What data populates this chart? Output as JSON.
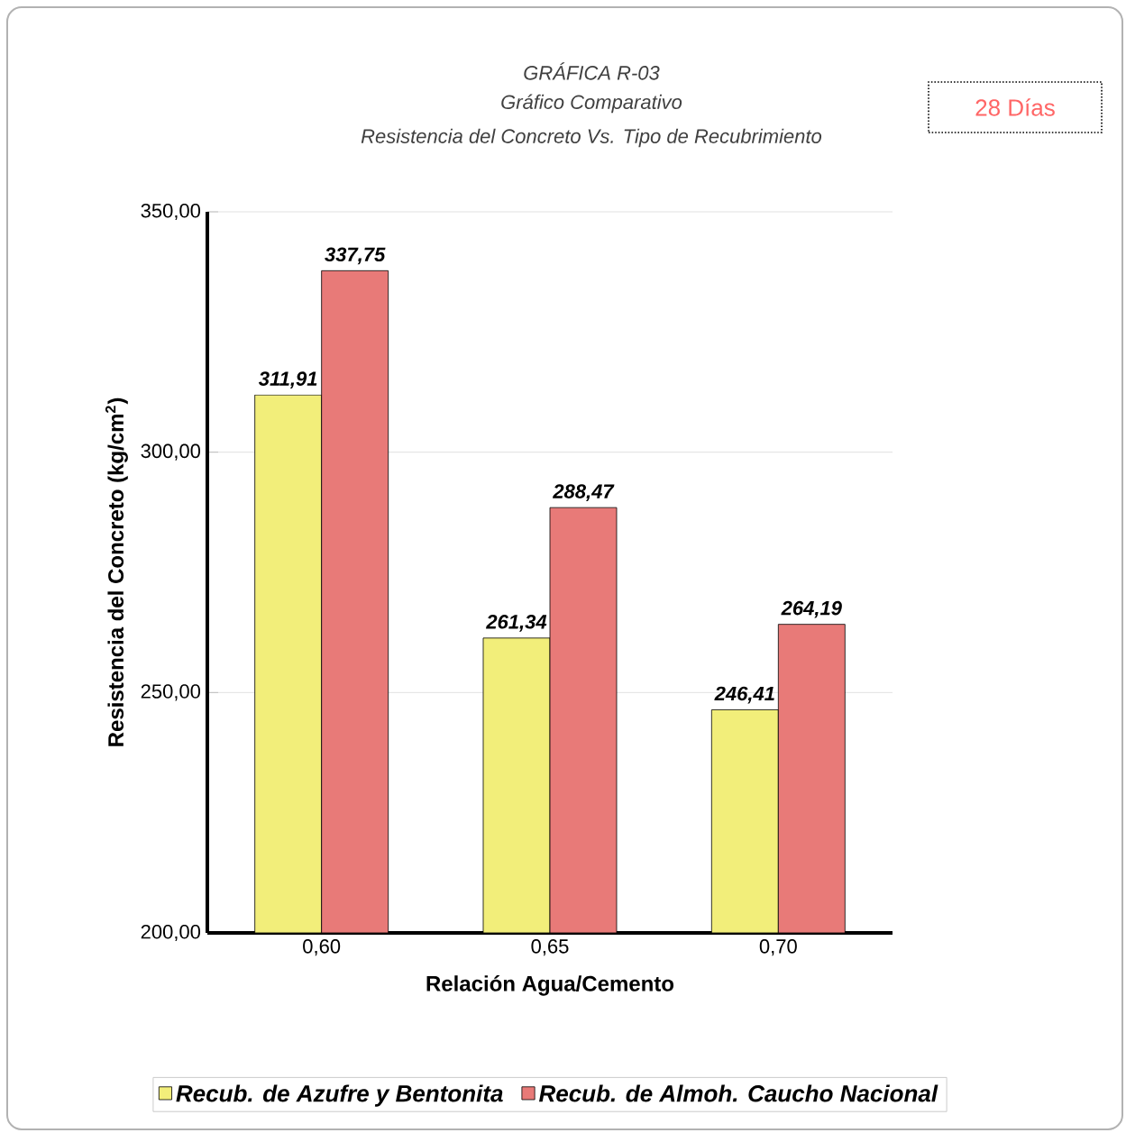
{
  "chart_data": {
    "type": "bar",
    "title": "GRÁFICA R-03",
    "subtitle": "Gráfico Comparativo",
    "annotations": [
      "Resistencia del Concreto Vs. Tipo de Recubrimiento",
      "28 Días"
    ],
    "xlabel": "Relación Agua/Cemento",
    "ylabel": "Resistencia del Concreto (kg/cm$^{2}$)",
    "categories": [
      "0,60",
      "0,65",
      "0,70"
    ],
    "series": [
      {
        "name": "Recub. de Azufre y Bentonita",
        "color": "#f2ee7a",
        "values": [
          311.91,
          261.34,
          246.41
        ],
        "value_labels": [
          "311,91",
          "261,34",
          "246,41"
        ]
      },
      {
        "name": "Recub. de Almoh. Caucho Nacional",
        "color": "#e87a78",
        "values": [
          337.75,
          288.47,
          264.19
        ],
        "value_labels": [
          "337,75",
          "288,47",
          "264,19"
        ]
      }
    ],
    "ylim": [
      200,
      350
    ],
    "yticks": [
      {
        "value": 200,
        "label": "200,00"
      },
      {
        "value": 250,
        "label": "250,00"
      },
      {
        "value": 300,
        "label": "300,00"
      },
      {
        "value": 350,
        "label": "350,00"
      }
    ],
    "grid": "y",
    "legend": "bottom"
  }
}
